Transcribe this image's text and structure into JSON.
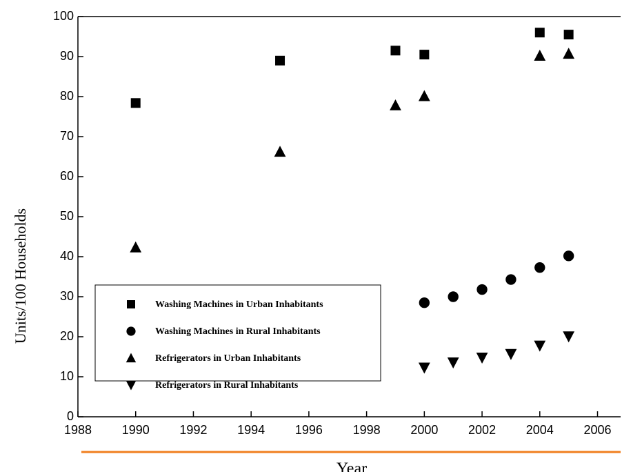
{
  "chart_data": {
    "type": "scatter",
    "xlabel": "Year",
    "ylabel": "Units/100 Households",
    "xlim": [
      1988,
      2006.8
    ],
    "xticks": [
      1988,
      1990,
      1992,
      1994,
      1996,
      1998,
      2000,
      2002,
      2004,
      2006
    ],
    "ylim": [
      0,
      100
    ],
    "yticks": [
      0,
      10,
      20,
      30,
      40,
      50,
      60,
      70,
      80,
      90,
      100
    ],
    "legend": "lower-left",
    "series": [
      {
        "name": "Washing Machines in Urban Inhabitants",
        "marker": "square",
        "color": "#000000",
        "x": [
          1990,
          1995,
          1999,
          2000,
          2004,
          2005
        ],
        "values": [
          78.4,
          89,
          91.5,
          90.5,
          96,
          95.5
        ]
      },
      {
        "name": "Washing Machines in Rural Inhabitants",
        "marker": "circle",
        "color": "#000000",
        "x": [
          2000,
          2001,
          2002,
          2003,
          2004,
          2005
        ],
        "values": [
          28.5,
          30,
          31.8,
          34.3,
          37.3,
          40.2
        ]
      },
      {
        "name": "Refrigerators in Urban Inhabitants",
        "marker": "triangle-up",
        "color": "#000000",
        "x": [
          1990,
          1995,
          1999,
          2000,
          2004,
          2005
        ],
        "values": [
          42.3,
          66.2,
          77.8,
          80.1,
          90.2,
          90.7
        ]
      },
      {
        "name": "Refrigerators in Rural Inhabitants",
        "marker": "triangle-down",
        "color": "#000000",
        "x": [
          2000,
          2001,
          2002,
          2003,
          2004,
          2005
        ],
        "values": [
          12.3,
          13.6,
          14.8,
          15.7,
          17.8,
          20.1
        ]
      }
    ]
  }
}
